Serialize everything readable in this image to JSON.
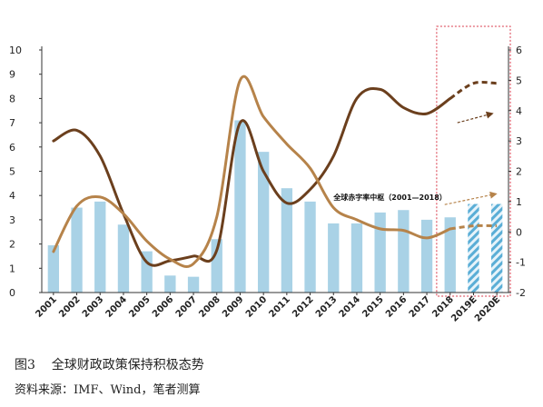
{
  "chart_data": {
    "type": "bar",
    "categories": [
      "2001",
      "2002",
      "2003",
      "2004",
      "2005",
      "2006",
      "2007",
      "2008",
      "2009",
      "2010",
      "2011",
      "2012",
      "2013",
      "2014",
      "2015",
      "2016",
      "2017",
      "2018",
      "2019E",
      "2020E"
    ],
    "ylim": [
      0,
      10
    ],
    "y2lim": [
      -2,
      6
    ],
    "yticks": [
      0,
      1,
      2,
      3,
      4,
      5,
      6,
      7,
      8,
      9,
      10
    ],
    "y2ticks": [
      -2,
      -1,
      0,
      1,
      2,
      3,
      4,
      5,
      6
    ],
    "series": [
      {
        "values": [
          1.95,
          3.5,
          3.75,
          2.8,
          1.7,
          0.7,
          0.65,
          2.2,
          7.1,
          5.8,
          4.3,
          3.75,
          2.85,
          2.85,
          3.3,
          3.4,
          3.0,
          3.1,
          3.65,
          3.65
        ],
        "axis": "left",
        "kind": "bar",
        "color": "#a9d2e6",
        "hatched_categories": [
          "2019E",
          "2020E"
        ]
      },
      {
        "values": [
          3.0,
          3.35,
          2.5,
          0.6,
          -1.0,
          -0.95,
          -0.8,
          -0.6,
          3.6,
          2.0,
          0.95,
          1.4,
          2.5,
          4.4,
          4.7,
          4.1,
          3.9,
          4.4,
          4.9,
          4.9
        ],
        "axis": "right",
        "kind": "line",
        "color": "#6b3f1d",
        "projected_from": "2018"
      },
      {
        "values": [
          -0.65,
          0.85,
          1.15,
          0.6,
          -0.3,
          -0.9,
          -1.05,
          0.5,
          5.0,
          3.8,
          2.9,
          2.1,
          0.8,
          0.4,
          0.1,
          0.05,
          -0.2,
          0.1,
          0.2,
          0.2
        ],
        "axis": "right",
        "kind": "line",
        "color": "#b6834a",
        "projected_from": "2018"
      }
    ],
    "annotations": [
      {
        "text": "全球赤字率中枢（2001—2018）",
        "x": "2013",
        "y2": 1.15
      }
    ],
    "forecast_box": {
      "from": "2018",
      "to": "2020E",
      "color": "#d93a4a"
    },
    "grid": false
  },
  "caption": {
    "title": "图3    全球财政政策保持积极态势",
    "source": "资料来源：IMF、Wind，笔者测算"
  },
  "colors": {
    "bar": "#a9d2e6",
    "bar_hatch": "#5aaed6",
    "line_dark": "#6b3f1d",
    "line_light": "#b6834a",
    "forecast_box": "#d93a4a",
    "axis": "#333333"
  }
}
